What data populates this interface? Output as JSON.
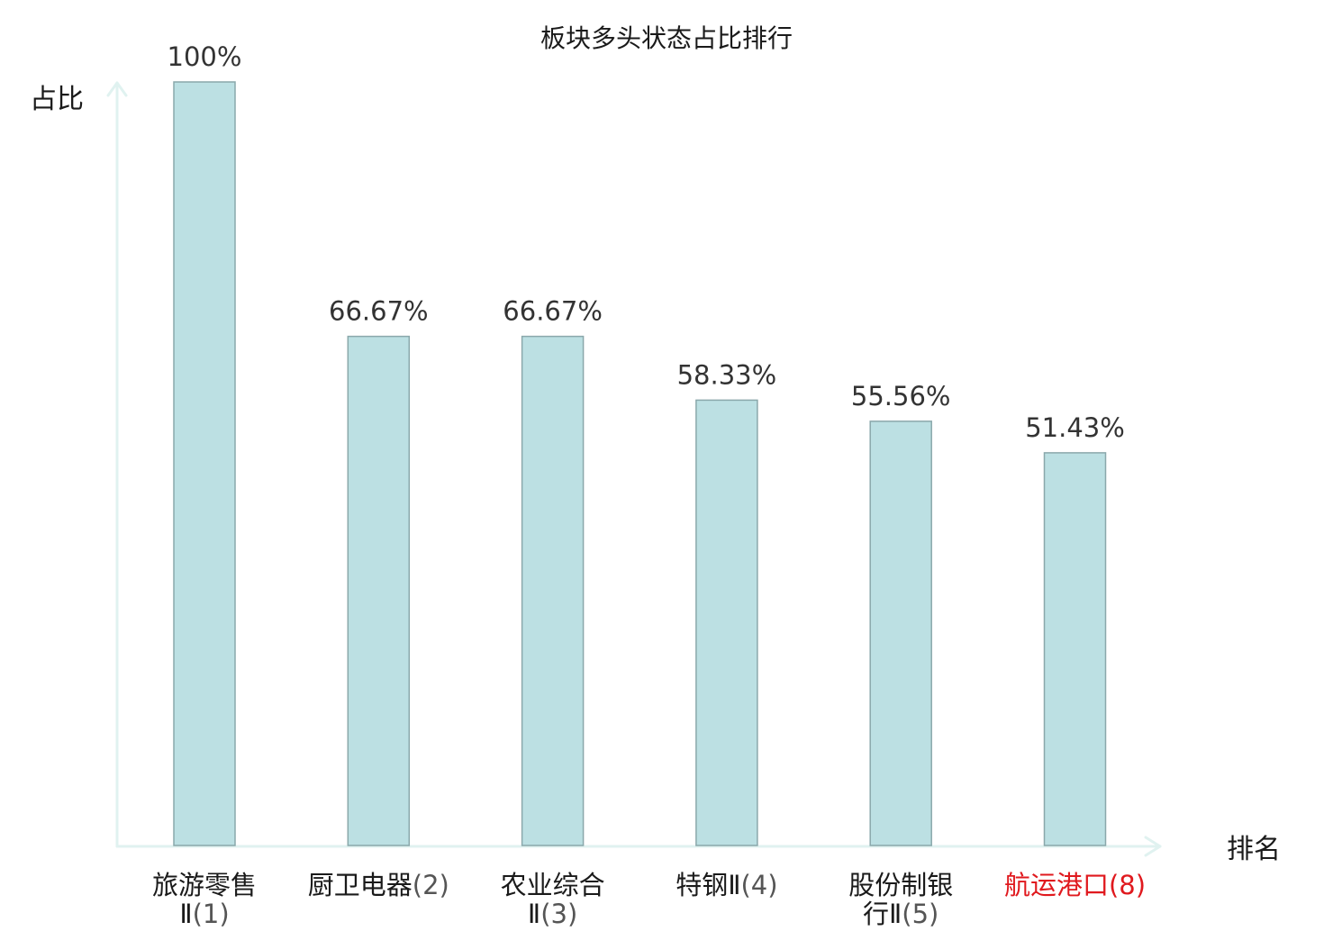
{
  "chart_data": {
    "type": "bar",
    "title": "板块多头状态占比排行",
    "ylabel": "占比",
    "xlabel": "排名",
    "categories": [
      {
        "name_lines": [
          "旅游零售",
          "Ⅱ"
        ],
        "rank": "(1)",
        "highlight": false
      },
      {
        "name_lines": [
          "厨卫电器"
        ],
        "rank": "(2)",
        "highlight": false
      },
      {
        "name_lines": [
          "农业综合",
          "Ⅱ"
        ],
        "rank": "(3)",
        "highlight": false
      },
      {
        "name_lines": [
          "特钢Ⅱ"
        ],
        "rank": "(4)",
        "highlight": false
      },
      {
        "name_lines": [
          "股份制银",
          "行Ⅱ"
        ],
        "rank": "(5)",
        "highlight": false
      },
      {
        "name_lines": [
          "航运港口"
        ],
        "rank": "(8)",
        "highlight": true
      }
    ],
    "values": [
      100,
      66.67,
      66.67,
      58.33,
      55.56,
      51.43
    ],
    "value_labels": [
      "100%",
      "66.67%",
      "66.67%",
      "58.33%",
      "55.56%",
      "51.43%"
    ],
    "ylim": [
      0,
      100
    ],
    "grid": false,
    "legend": "none",
    "colors": {
      "bar_fill": "#bce0e3",
      "bar_stroke": "#8aa8ab",
      "axis": "#e0f2f0",
      "text": "#1a1a1a",
      "value_text": "#333333",
      "rank_text": "#555555",
      "highlight": "#e0191e"
    }
  }
}
